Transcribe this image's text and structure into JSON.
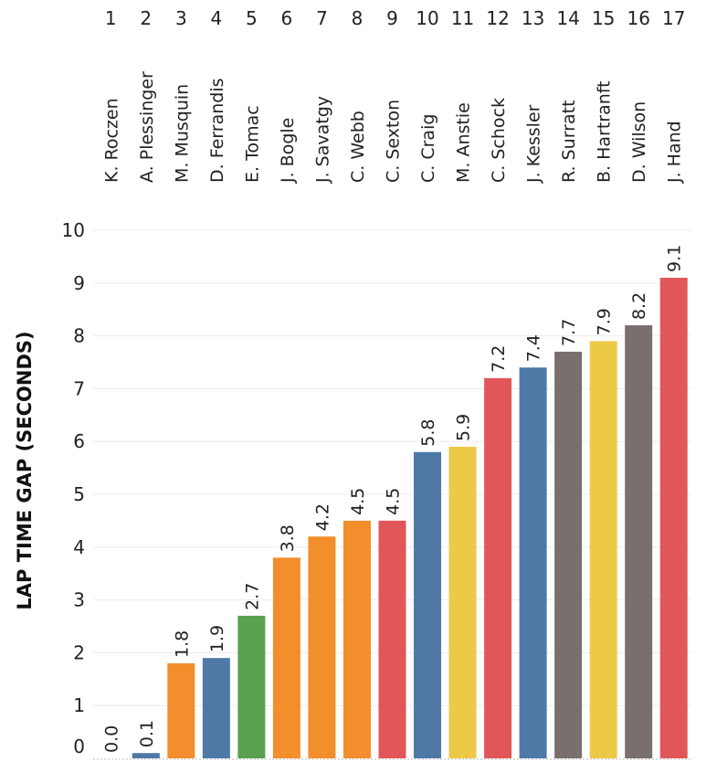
{
  "chart_data": {
    "type": "bar",
    "title": "",
    "xlabel": "",
    "ylabel": "LAP TIME GAP (SECONDS)",
    "ylim": [
      0,
      10
    ],
    "yticks": [
      0,
      1,
      2,
      3,
      4,
      5,
      6,
      7,
      8,
      9,
      10
    ],
    "grid": true,
    "ranks": [
      "1",
      "2",
      "3",
      "4",
      "5",
      "6",
      "7",
      "8",
      "9",
      "10",
      "11",
      "12",
      "13",
      "14",
      "15",
      "16",
      "17"
    ],
    "categories": [
      "K. Roczen",
      "A. Plessinger",
      "M. Musquin",
      "D. Ferrandis",
      "E. Tomac",
      "J. Bogle",
      "J. Savatgy",
      "C. Webb",
      "C. Sexton",
      "C. Craig",
      "M. Anstie",
      "C. Schock",
      "J. Kessler",
      "R. Surratt",
      "B. Hartranft",
      "D. Wilson",
      "J. Hand"
    ],
    "values": [
      0.0,
      0.1,
      1.8,
      1.9,
      2.7,
      3.8,
      4.2,
      4.5,
      4.5,
      5.8,
      5.9,
      7.2,
      7.4,
      7.7,
      7.9,
      8.2,
      9.1
    ],
    "value_labels": [
      "0.0",
      "0.1",
      "1.8",
      "1.9",
      "2.7",
      "3.8",
      "4.2",
      "4.5",
      "4.5",
      "5.8",
      "5.9",
      "7.2",
      "7.4",
      "7.7",
      "7.9",
      "8.2",
      "9.1"
    ],
    "colors": [
      "#4e79a7",
      "#4e79a7",
      "#f28e2b",
      "#4e79a7",
      "#59a14f",
      "#f28e2b",
      "#f28e2b",
      "#f28e2b",
      "#e15759",
      "#4e79a7",
      "#edc948",
      "#e15759",
      "#4e79a7",
      "#79706e",
      "#edc948",
      "#79706e",
      "#e15759"
    ]
  }
}
